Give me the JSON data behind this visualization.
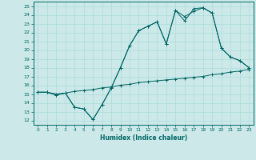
{
  "title": "",
  "xlabel": "Humidex (Indice chaleur)",
  "bg_color": "#cce8e8",
  "line_color": "#006666",
  "grid_color": "#aadddd",
  "xlim": [
    -0.5,
    23.5
  ],
  "ylim": [
    11.5,
    25.5
  ],
  "xticks": [
    0,
    1,
    2,
    3,
    4,
    5,
    6,
    7,
    8,
    9,
    10,
    11,
    12,
    13,
    14,
    15,
    16,
    17,
    18,
    19,
    20,
    21,
    22,
    23
  ],
  "yticks": [
    12,
    13,
    14,
    15,
    16,
    17,
    18,
    19,
    20,
    21,
    22,
    23,
    24,
    25
  ],
  "line1_x": [
    0,
    1,
    2,
    3,
    4,
    5,
    6,
    7,
    8,
    9,
    10,
    11,
    12,
    13,
    14,
    15,
    16,
    17,
    18,
    19,
    20,
    21,
    22,
    23
  ],
  "line1_y": [
    15.2,
    15.2,
    15.0,
    15.1,
    15.3,
    15.4,
    15.5,
    15.7,
    15.8,
    16.0,
    16.1,
    16.3,
    16.4,
    16.5,
    16.6,
    16.7,
    16.8,
    16.9,
    17.0,
    17.2,
    17.3,
    17.5,
    17.6,
    17.8
  ],
  "line2_x": [
    0,
    1,
    2,
    3,
    4,
    5,
    6,
    7,
    8,
    9,
    10,
    11,
    12,
    13,
    14,
    15,
    16,
    17,
    18,
    19,
    20,
    21,
    22,
    23
  ],
  "line2_y": [
    15.2,
    15.2,
    14.9,
    15.1,
    13.5,
    13.3,
    12.1,
    13.8,
    15.7,
    18.0,
    20.5,
    22.2,
    22.7,
    23.2,
    20.7,
    24.5,
    23.8,
    24.4,
    24.8,
    24.2,
    20.2,
    19.2,
    18.8,
    18.0
  ],
  "line3_x": [
    0,
    1,
    2,
    3,
    4,
    5,
    6,
    7,
    8,
    9,
    10,
    11,
    12,
    13,
    14,
    15,
    16,
    17,
    18,
    19,
    20,
    21,
    22,
    23
  ],
  "line3_y": [
    15.2,
    15.2,
    14.9,
    15.1,
    13.5,
    13.3,
    12.1,
    13.8,
    15.7,
    18.0,
    20.5,
    22.2,
    22.7,
    23.2,
    20.7,
    24.5,
    23.3,
    24.7,
    24.8,
    24.2,
    20.2,
    19.2,
    18.8,
    18.0
  ]
}
